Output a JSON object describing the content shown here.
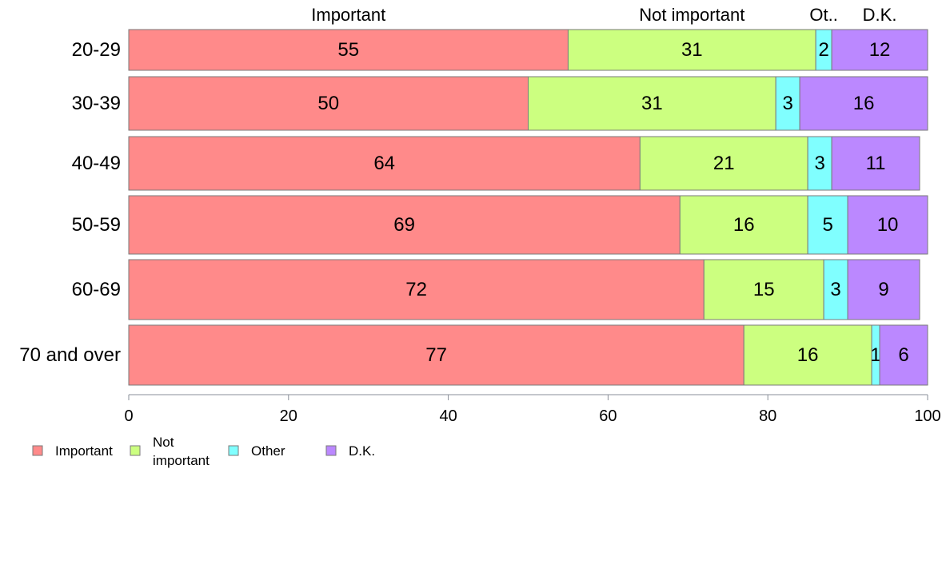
{
  "chart_data": {
    "type": "bar",
    "orientation": "horizontal",
    "stacked": true,
    "title": "",
    "xlabel": "",
    "ylabel": "",
    "xlim": [
      0,
      100
    ],
    "x_ticks": [
      0,
      20,
      40,
      60,
      80,
      100
    ],
    "grid": false,
    "categories": [
      "20-29",
      "30-39",
      "40-49",
      "50-59",
      "60-69",
      "70 and over"
    ],
    "series": [
      {
        "name": "Important",
        "color": "#ff8a8a",
        "values": [
          55,
          50,
          64,
          69,
          72,
          77
        ]
      },
      {
        "name": "Not important",
        "color": "#ccff80",
        "values": [
          31,
          31,
          21,
          16,
          15,
          16
        ]
      },
      {
        "name": "Other",
        "color": "#80ffff",
        "values": [
          2,
          3,
          3,
          5,
          3,
          1
        ]
      },
      {
        "name": "D.K.",
        "color": "#bb88ff",
        "values": [
          12,
          16,
          11,
          10,
          9,
          6
        ]
      }
    ],
    "top_labels": [
      "Important",
      "Not important",
      "Ot..",
      "D.K."
    ],
    "legend": {
      "position": "bottom-left",
      "items": [
        {
          "lines": [
            "Important"
          ],
          "color": "#ff8a8a"
        },
        {
          "lines": [
            "Not",
            "important"
          ],
          "color": "#ccff80"
        },
        {
          "lines": [
            "Other"
          ],
          "color": "#80ffff"
        },
        {
          "lines": [
            "D.K."
          ],
          "color": "#bb88ff"
        }
      ]
    }
  }
}
